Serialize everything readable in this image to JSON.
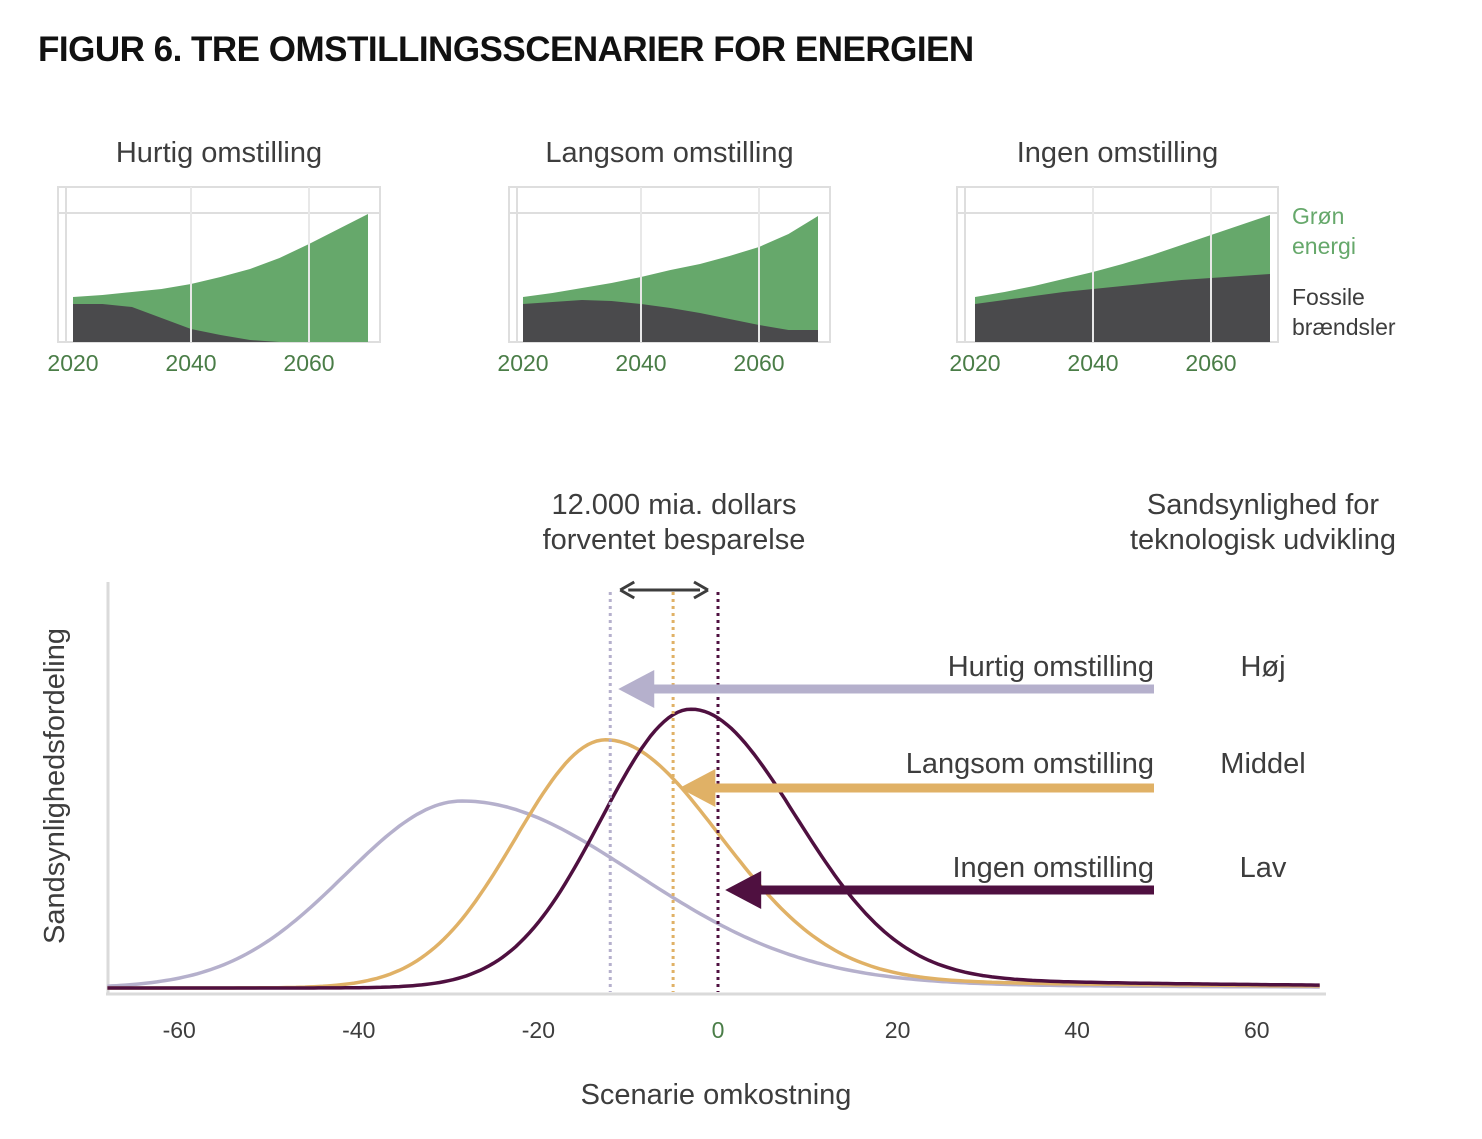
{
  "figure_title": "FIGUR 6. TRE OMSTILLINGSSCENARIER FOR ENERGIEN",
  "colors": {
    "green_energy": "#66a86b",
    "fossil": "#4a4a4c",
    "tick_green": "#4a7d47",
    "fast": "#b5b0cc",
    "slow": "#e0b166",
    "none": "#4f1040",
    "text": "#3d3d3d"
  },
  "chart_data": [
    {
      "type": "area",
      "title": "Hurtig omstilling",
      "x": [
        2020,
        2025,
        2030,
        2035,
        2040,
        2045,
        2050,
        2055,
        2060,
        2065,
        2070
      ],
      "xticks": [
        "2020",
        "2040",
        "2060"
      ],
      "series": [
        {
          "name": "Fossile brændsler",
          "values": [
            0.38,
            0.38,
            0.35,
            0.24,
            0.13,
            0.07,
            0.02,
            0,
            0,
            0,
            0
          ]
        },
        {
          "name": "Grøn energi",
          "values": [
            0.07,
            0.09,
            0.15,
            0.29,
            0.45,
            0.58,
            0.71,
            0.84,
            0.98,
            1.13,
            1.28
          ]
        }
      ]
    },
    {
      "type": "area",
      "title": "Langsom omstilling",
      "x": [
        2020,
        2025,
        2030,
        2035,
        2040,
        2045,
        2050,
        2055,
        2060,
        2065,
        2070
      ],
      "xticks": [
        "2020",
        "2040",
        "2060"
      ],
      "series": [
        {
          "name": "Fossile brændsler",
          "values": [
            0.38,
            0.4,
            0.42,
            0.41,
            0.38,
            0.34,
            0.29,
            0.23,
            0.17,
            0.12,
            0.12
          ]
        },
        {
          "name": "Grøn energi",
          "values": [
            0.07,
            0.09,
            0.12,
            0.18,
            0.27,
            0.38,
            0.49,
            0.63,
            0.78,
            0.96,
            1.14
          ]
        }
      ]
    },
    {
      "type": "area",
      "title": "Ingen omstilling",
      "x": [
        2020,
        2025,
        2030,
        2035,
        2040,
        2045,
        2050,
        2055,
        2060,
        2065,
        2070
      ],
      "xticks": [
        "2020",
        "2040",
        "2060"
      ],
      "legend": [
        {
          "label": "Grøn\nenergi",
          "lines": [
            "Grøn",
            "energi"
          ]
        },
        {
          "label": "Fossile\nbrændsler",
          "lines": [
            "Fossile",
            "brændsler"
          ]
        }
      ],
      "series": [
        {
          "name": "Fossile brændsler",
          "values": [
            0.38,
            0.42,
            0.46,
            0.5,
            0.53,
            0.56,
            0.59,
            0.62,
            0.64,
            0.66,
            0.68
          ]
        },
        {
          "name": "Grøn energi",
          "values": [
            0.07,
            0.08,
            0.1,
            0.13,
            0.17,
            0.22,
            0.28,
            0.35,
            0.43,
            0.51,
            0.59
          ]
        }
      ]
    },
    {
      "type": "line",
      "xlabel": "Scenarie omkostning",
      "ylabel": "Sandsynlighedsfordeling",
      "xlim": [
        -68,
        67
      ],
      "xticks": [
        -60,
        -40,
        -20,
        0,
        20,
        40,
        60
      ],
      "xtick_labels": [
        "-60",
        "-40",
        "-20",
        "0",
        "20",
        "40",
        "60"
      ],
      "annotation_savings": [
        "12.000 mia. dollars",
        "forventet besparelse"
      ],
      "probability_header": [
        "Sandsynlighed for",
        "teknologisk udvikling"
      ],
      "savings_range": [
        -12,
        0
      ],
      "series": [
        {
          "name": "Hurtig omstilling",
          "probability": "Høj",
          "mode": -28.5,
          "peak": 0.55,
          "sd_left": 13,
          "sd_right": 19,
          "mean": -12
        },
        {
          "name": "Langsom omstilling",
          "probability": "Middel",
          "mode": -12.5,
          "peak": 0.73,
          "sd_left": 10,
          "sd_right": 12.5,
          "mean": -5
        },
        {
          "name": "Ingen omstilling",
          "probability": "Lav",
          "mode": -3,
          "peak": 0.82,
          "sd_left": 10,
          "sd_right": 11.5,
          "mean": 0
        }
      ]
    }
  ]
}
